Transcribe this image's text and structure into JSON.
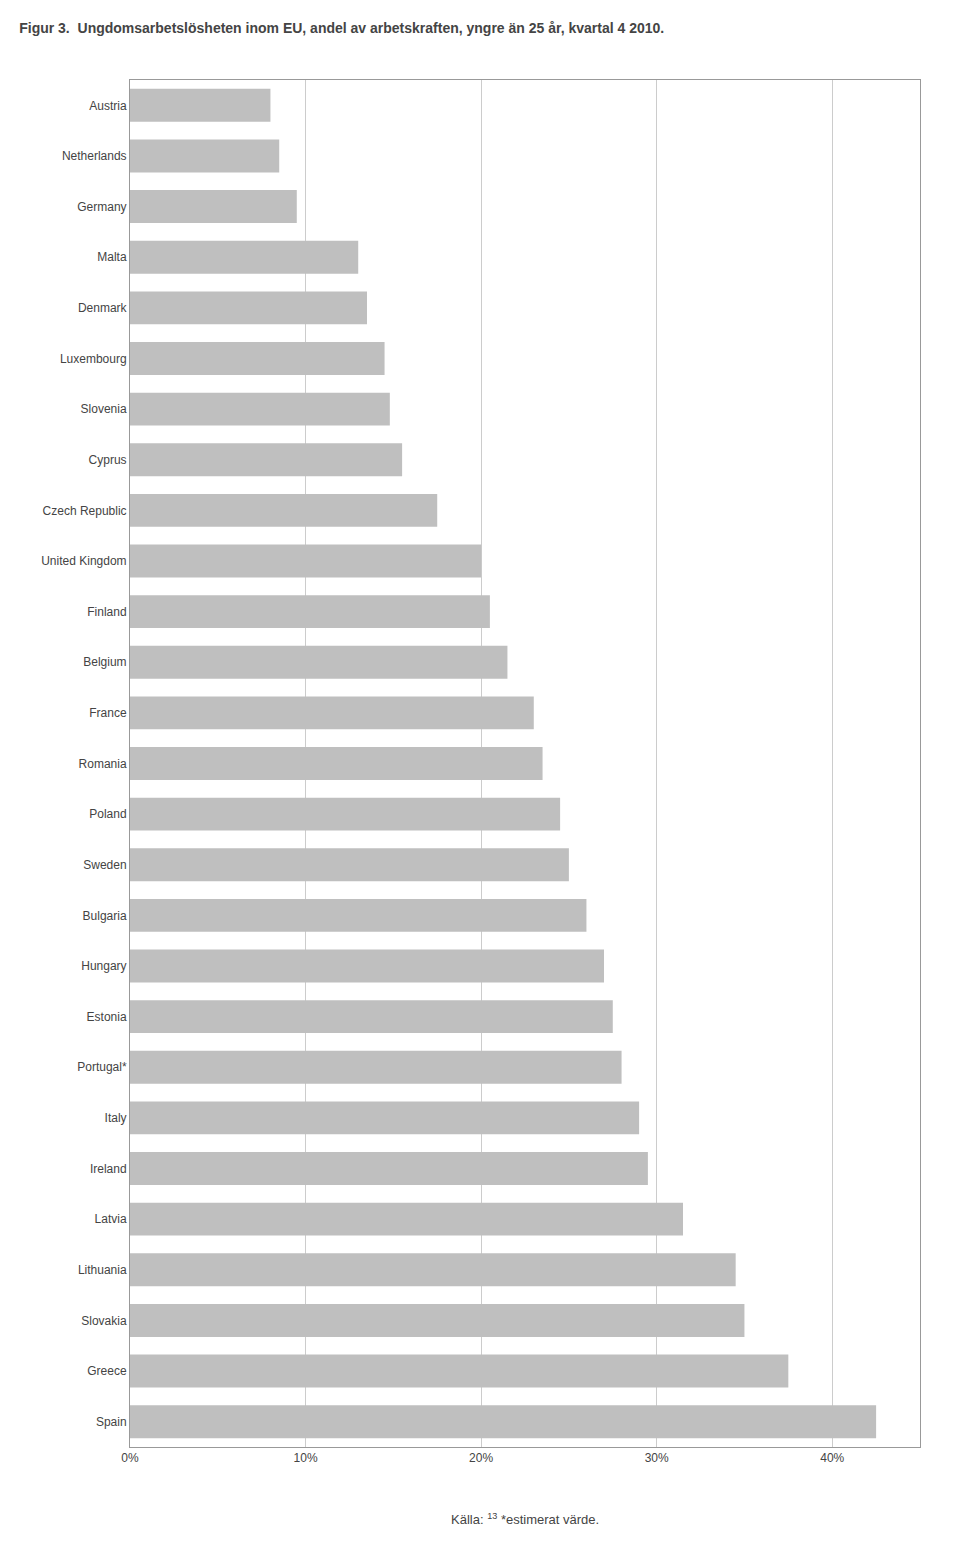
{
  "chart_data": {
    "type": "bar",
    "orientation": "horizontal",
    "title": "Figur 3.  Ungdomsarbetslösheten inom EU, andel av arbetskraften, yngre än 25 år, kvartal 4 2010.",
    "annotations": [
      "Källa:",
      "13",
      "*estimerat värde."
    ],
    "categories": [
      "Austria",
      "Netherlands",
      "Germany",
      "Malta",
      "Denmark",
      "Luxembourg",
      "Slovenia",
      "Cyprus",
      "Czech Republic",
      "United Kingdom",
      "Finland",
      "Belgium",
      "France",
      "Romania",
      "Poland",
      "Sweden",
      "Bulgaria",
      "Hungary",
      "Estonia",
      "Portugal*",
      "Italy",
      "Ireland",
      "Latvia",
      "Lithuania",
      "Slovakia",
      "Greece",
      "Spain"
    ],
    "values": [
      8.0,
      8.5,
      9.5,
      13.0,
      13.5,
      14.5,
      14.8,
      15.5,
      17.5,
      20.0,
      20.5,
      21.5,
      23.0,
      23.5,
      24.5,
      25.0,
      26.0,
      27.0,
      27.5,
      28.0,
      29.0,
      29.5,
      31.5,
      34.5,
      35.0,
      37.5,
      42.5
    ],
    "color": "#bfbfbf",
    "xlim": [
      0,
      45
    ],
    "xticks": [
      {
        "value": 0,
        "label": "0%"
      },
      {
        "value": 10,
        "label": "10%"
      },
      {
        "value": 20,
        "label": "20%"
      },
      {
        "value": 30,
        "label": "30%"
      },
      {
        "value": 40,
        "label": "40%"
      }
    ],
    "grid": true
  }
}
